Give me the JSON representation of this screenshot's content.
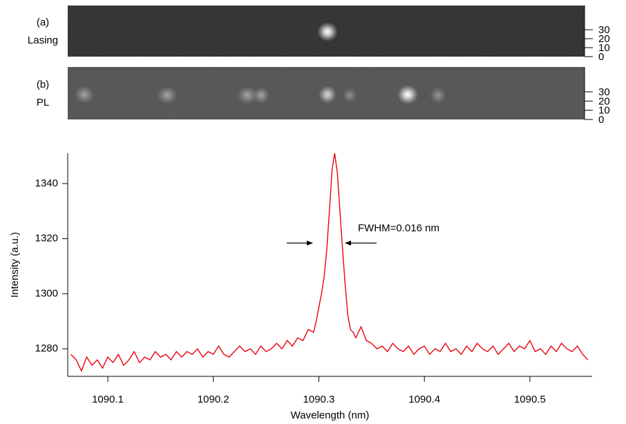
{
  "chart_data": [
    {
      "type": "image",
      "title": "(a)",
      "subtitle": "Lasing",
      "ylim": [
        0,
        57
      ],
      "yticks": [
        0,
        10,
        20,
        30
      ]
    },
    {
      "type": "image",
      "title": "(b)",
      "subtitle": "PL",
      "ylim": [
        0,
        57
      ],
      "yticks": [
        0,
        10,
        20,
        30
      ]
    },
    {
      "type": "line",
      "x_label": "Wavelength (nm)",
      "y_label": "Intensity (a.u.)",
      "annotation": "FWHM=0.016 nm",
      "xlim": [
        1090.062,
        1090.559
      ],
      "ylim": [
        1270,
        1351
      ],
      "xticks": [
        1090.1,
        1090.2,
        1090.3,
        1090.4,
        1090.5
      ],
      "yticks": [
        1280,
        1300,
        1320,
        1340
      ],
      "x": [
        1090.065,
        1090.07,
        1090.075,
        1090.08,
        1090.085,
        1090.09,
        1090.095,
        1090.1,
        1090.105,
        1090.11,
        1090.115,
        1090.12,
        1090.125,
        1090.13,
        1090.135,
        1090.14,
        1090.145,
        1090.15,
        1090.155,
        1090.16,
        1090.165,
        1090.17,
        1090.175,
        1090.18,
        1090.185,
        1090.19,
        1090.195,
        1090.2,
        1090.205,
        1090.21,
        1090.215,
        1090.22,
        1090.225,
        1090.23,
        1090.235,
        1090.24,
        1090.245,
        1090.25,
        1090.255,
        1090.26,
        1090.265,
        1090.27,
        1090.275,
        1090.28,
        1090.285,
        1090.29,
        1090.295,
        1090.2975,
        1090.3,
        1090.3025,
        1090.305,
        1090.3075,
        1090.31,
        1090.3125,
        1090.315,
        1090.3175,
        1090.32,
        1090.3225,
        1090.325,
        1090.3275,
        1090.33,
        1090.3325,
        1090.335,
        1090.34,
        1090.345,
        1090.35,
        1090.355,
        1090.36,
        1090.365,
        1090.37,
        1090.375,
        1090.38,
        1090.385,
        1090.39,
        1090.395,
        1090.4,
        1090.405,
        1090.41,
        1090.415,
        1090.42,
        1090.425,
        1090.43,
        1090.435,
        1090.44,
        1090.445,
        1090.45,
        1090.455,
        1090.46,
        1090.465,
        1090.47,
        1090.475,
        1090.48,
        1090.485,
        1090.49,
        1090.495,
        1090.5,
        1090.505,
        1090.51,
        1090.515,
        1090.52,
        1090.525,
        1090.53,
        1090.535,
        1090.54,
        1090.545,
        1090.55,
        1090.555
      ],
      "series": [
        {
          "color": "#e8000b",
          "values": [
            1278,
            1276,
            1272,
            1277,
            1274,
            1276,
            1273,
            1277,
            1275,
            1278,
            1274,
            1276,
            1279,
            1275,
            1277,
            1276,
            1279,
            1277,
            1278,
            1276,
            1279,
            1277,
            1279,
            1278,
            1280,
            1277,
            1279,
            1278,
            1281,
            1278,
            1277,
            1279,
            1281,
            1279,
            1280,
            1278,
            1281,
            1279,
            1280,
            1282,
            1280,
            1283,
            1281,
            1284,
            1283,
            1287,
            1286,
            1290,
            1295,
            1300,
            1306,
            1316,
            1330,
            1345,
            1351,
            1344,
            1330,
            1316,
            1303,
            1292,
            1287,
            1286,
            1284,
            1288,
            1283,
            1282,
            1280,
            1281,
            1279,
            1282,
            1280,
            1279,
            1281,
            1278,
            1280,
            1281,
            1278,
            1280,
            1279,
            1282,
            1279,
            1280,
            1278,
            1281,
            1279,
            1282,
            1280,
            1279,
            1281,
            1278,
            1280,
            1282,
            1279,
            1281,
            1280,
            1283,
            1279,
            1280,
            1278,
            1281,
            1279,
            1282,
            1280,
            1279,
            1281,
            1278,
            1276
          ]
        }
      ]
    }
  ]
}
